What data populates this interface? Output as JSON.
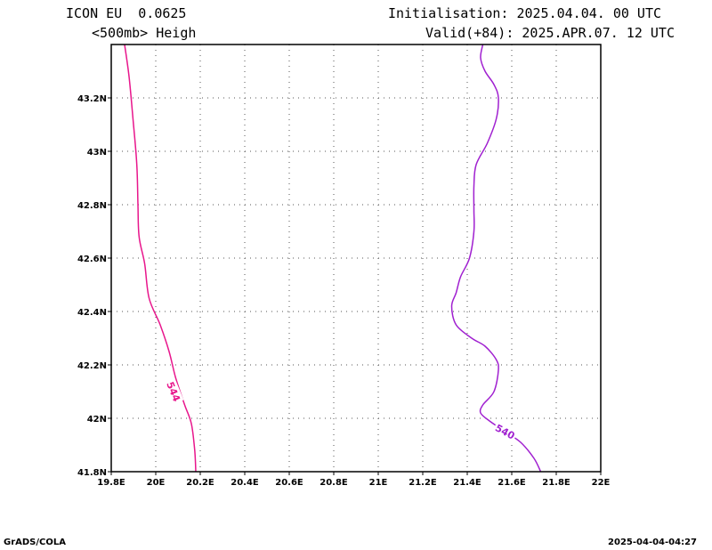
{
  "header": {
    "model": "ICON EU  0.0625",
    "field": "<500mb> Heigh",
    "init": "Initialisation: 2025.04.04. 00 UTC",
    "valid": "Valid(+84): 2025.APR.07. 12 UTC"
  },
  "footer": {
    "left": "GrADS/COLA",
    "right": "2025-04-04-04:27"
  },
  "chart_data": {
    "type": "line",
    "xlim": [
      19.8,
      22.0
    ],
    "ylim": [
      41.8,
      43.4
    ],
    "grid": true,
    "x_ticks": [
      {
        "v": 19.8,
        "label": "19.8E"
      },
      {
        "v": 20.0,
        "label": "20E"
      },
      {
        "v": 20.2,
        "label": "20.2E"
      },
      {
        "v": 20.4,
        "label": "20.4E"
      },
      {
        "v": 20.6,
        "label": "20.6E"
      },
      {
        "v": 20.8,
        "label": "20.8E"
      },
      {
        "v": 21.0,
        "label": "21E"
      },
      {
        "v": 21.2,
        "label": "21.2E"
      },
      {
        "v": 21.4,
        "label": "21.4E"
      },
      {
        "v": 21.6,
        "label": "21.6E"
      },
      {
        "v": 21.8,
        "label": "21.8E"
      },
      {
        "v": 22.0,
        "label": "22E"
      }
    ],
    "y_ticks": [
      {
        "v": 41.8,
        "label": "41.8N"
      },
      {
        "v": 42.0,
        "label": "42N"
      },
      {
        "v": 42.2,
        "label": "42.2N"
      },
      {
        "v": 42.4,
        "label": "42.4N"
      },
      {
        "v": 42.6,
        "label": "42.6N"
      },
      {
        "v": 42.8,
        "label": "42.8N"
      },
      {
        "v": 43.0,
        "label": "43N"
      },
      {
        "v": 43.2,
        "label": "43.2N"
      }
    ],
    "series": [
      {
        "name": "544",
        "color": "#e8168c",
        "label_at": {
          "lon": 20.08,
          "lat": 42.1,
          "angle": 68
        },
        "points": [
          [
            19.86,
            43.4
          ],
          [
            19.88,
            43.28
          ],
          [
            19.9,
            43.1
          ],
          [
            19.915,
            42.95
          ],
          [
            19.92,
            42.8
          ],
          [
            19.925,
            42.68
          ],
          [
            19.95,
            42.58
          ],
          [
            19.97,
            42.45
          ],
          [
            20.02,
            42.35
          ],
          [
            20.06,
            42.25
          ],
          [
            20.09,
            42.15
          ],
          [
            20.13,
            42.05
          ],
          [
            20.16,
            41.98
          ],
          [
            20.175,
            41.88
          ],
          [
            20.18,
            41.8
          ]
        ]
      },
      {
        "name": "540",
        "color": "#a020d0",
        "label_at": {
          "lon": 21.57,
          "lat": 41.95,
          "angle": 28
        },
        "points": [
          [
            21.47,
            43.4
          ],
          [
            21.46,
            43.35
          ],
          [
            21.48,
            43.3
          ],
          [
            21.52,
            43.25
          ],
          [
            21.54,
            43.2
          ],
          [
            21.53,
            43.12
          ],
          [
            21.49,
            43.03
          ],
          [
            21.44,
            42.95
          ],
          [
            21.43,
            42.87
          ],
          [
            21.43,
            42.78
          ],
          [
            21.43,
            42.7
          ],
          [
            21.41,
            42.6
          ],
          [
            21.37,
            42.53
          ],
          [
            21.35,
            42.47
          ],
          [
            21.33,
            42.42
          ],
          [
            21.35,
            42.35
          ],
          [
            21.42,
            42.3
          ],
          [
            21.48,
            42.27
          ],
          [
            21.53,
            42.22
          ],
          [
            21.54,
            42.18
          ],
          [
            21.52,
            42.1
          ],
          [
            21.47,
            42.05
          ],
          [
            21.46,
            42.02
          ],
          [
            21.5,
            41.99
          ],
          [
            21.57,
            41.95
          ],
          [
            21.64,
            41.91
          ],
          [
            21.7,
            41.85
          ],
          [
            21.73,
            41.8
          ]
        ]
      }
    ]
  }
}
